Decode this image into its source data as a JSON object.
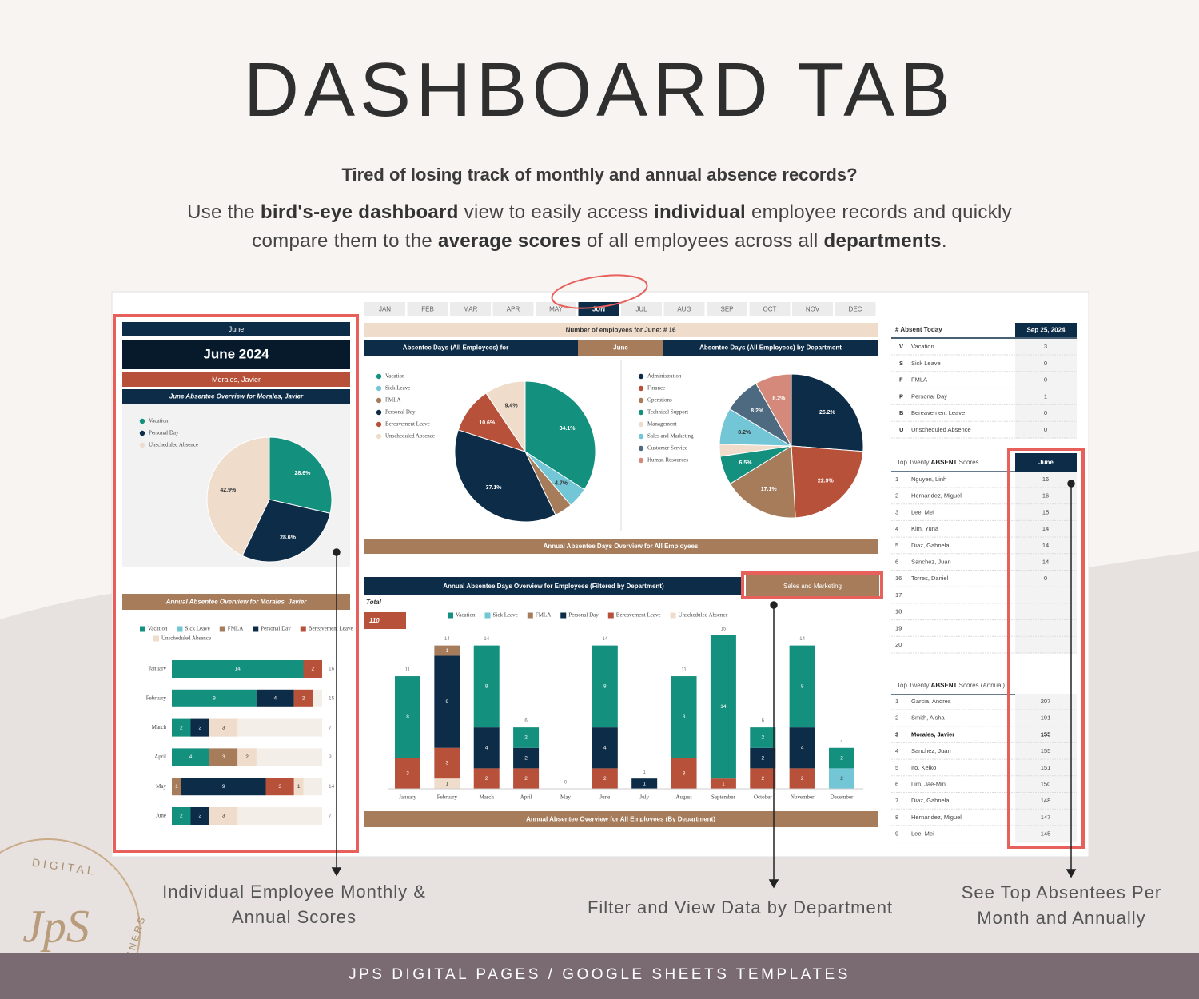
{
  "header": {
    "title": "DASHBOARD TAB",
    "question": "Tired of losing track of monthly and annual absence records?",
    "description": [
      {
        "text": "Use the ",
        "bold": false
      },
      {
        "text": "bird's-eye dashboard",
        "bold": true
      },
      {
        "text": " view to easily access ",
        "bold": false
      },
      {
        "text": "individual",
        "bold": true
      },
      {
        "text": " employee records and quickly compare them to the ",
        "bold": false
      },
      {
        "text": "average scores",
        "bold": true
      },
      {
        "text": " of all employees across all ",
        "bold": false
      },
      {
        "text": "departments",
        "bold": true
      },
      {
        "text": ".",
        "bold": false
      }
    ]
  },
  "dashboard": {
    "months": [
      "JAN",
      "FEB",
      "MAR",
      "APR",
      "MAY",
      "JUN",
      "JUL",
      "AUG",
      "SEP",
      "OCT",
      "NOV",
      "DEC"
    ],
    "active_month_index": 5,
    "employee": {
      "month_label": "June",
      "period": "June 2024",
      "name": "Morales, Javier",
      "overview_title": "June Absentee Overview for Morales, Javier",
      "pie": {
        "type": "pie",
        "categories": [
          "Vacation",
          "Personal Day",
          "Unscheduled Absence"
        ],
        "colors": [
          "#14907f",
          "#0c2c47",
          "#efdccb"
        ],
        "values": [
          28.6,
          28.6,
          42.9
        ],
        "value_labels": [
          "28.6%",
          "28.6%",
          "42.9%"
        ]
      }
    },
    "employee_annual": {
      "type": "bar",
      "orientation": "horizontal",
      "title": "Annual Absentee Overview for Morales, Javier",
      "categories": [
        "January",
        "February",
        "March",
        "April",
        "May",
        "June"
      ],
      "series": [
        {
          "name": "Vacation",
          "color": "#14907f",
          "values": [
            14,
            9,
            2,
            4,
            0,
            2
          ]
        },
        {
          "name": "Sick Leave",
          "color": "#72c6d6",
          "values": [
            0,
            0,
            0,
            0,
            0,
            0
          ]
        },
        {
          "name": "FMLA",
          "color": "#a67c5b",
          "values": [
            0,
            0,
            0,
            3,
            1,
            0
          ]
        },
        {
          "name": "Personal Day",
          "color": "#0c2c47",
          "values": [
            0,
            4,
            2,
            0,
            9,
            2
          ]
        },
        {
          "name": "Bereavement Leave",
          "color": "#b8513a",
          "values": [
            2,
            2,
            0,
            0,
            3,
            0
          ]
        },
        {
          "name": "Unscheduled Absence",
          "color": "#efdccb",
          "values": [
            0,
            0,
            3,
            2,
            1,
            3
          ]
        }
      ],
      "totals": [
        16,
        15,
        7,
        9,
        14,
        7
      ],
      "xlim": [
        0,
        16
      ]
    },
    "summary": "Number of employees for June: # 16",
    "pies_header": {
      "left": "Absentee Days (All Employees) for",
      "month": "June",
      "right": "Absentee Days (All Employees) by Department"
    },
    "type_pie": {
      "type": "pie",
      "categories": [
        "Vacation",
        "Sick Leave",
        "FMLA",
        "Personal Day",
        "Bereavement Leave",
        "Unscheduled Absence"
      ],
      "colors": [
        "#14907f",
        "#72c6d6",
        "#a67c5b",
        "#0c2c47",
        "#b8513a",
        "#efdccb"
      ],
      "values": [
        34.1,
        4.7,
        4.1,
        37.1,
        10.6,
        9.4
      ],
      "value_labels": [
        "34.1%",
        "4.7%",
        null,
        "37.1%",
        "10.6%",
        "9.4%"
      ]
    },
    "dept_pie": {
      "type": "pie",
      "categories": [
        "Administration",
        "Finance",
        "Operations",
        "Technical Support",
        "Management",
        "Sales and Marketing",
        "Customer Service",
        "Human Resources"
      ],
      "colors": [
        "#0c2c47",
        "#b8513a",
        "#a67c5b",
        "#14907f",
        "#efdccb",
        "#72c6d6",
        "#4e6a80",
        "#d4897a"
      ],
      "values": [
        26.2,
        22.9,
        17.1,
        6.5,
        2.7,
        8.2,
        8.2,
        8.2
      ],
      "value_labels": [
        "26.2%",
        "22.9%",
        "17.1%",
        "6.5%",
        null,
        "8.2%",
        "8.2%",
        "8.2%"
      ]
    },
    "annual_all_title": "Annual Absentee Days Overview for All Employees",
    "filtered": {
      "type": "bar",
      "title": "Annual Absentee Days Overview for Employees (Filtered by Department)",
      "filter": "Sales and Marketing",
      "total_label": "Total",
      "total": 110,
      "categories": [
        "January",
        "February",
        "March",
        "April",
        "May",
        "June",
        "July",
        "August",
        "September",
        "October",
        "November",
        "December"
      ],
      "series": [
        {
          "name": "Vacation",
          "color": "#14907f",
          "values": [
            8,
            0,
            8,
            2,
            0,
            8,
            0,
            8,
            14,
            2,
            8,
            2
          ]
        },
        {
          "name": "Sick Leave",
          "color": "#72c6d6",
          "values": [
            0,
            0,
            0,
            0,
            0,
            0,
            0,
            0,
            0,
            0,
            0,
            2
          ]
        },
        {
          "name": "FMLA",
          "color": "#a67c5b",
          "values": [
            0,
            1,
            0,
            0,
            0,
            0,
            0,
            0,
            0,
            0,
            0,
            0
          ]
        },
        {
          "name": "Personal Day",
          "color": "#0c2c47",
          "values": [
            0,
            9,
            4,
            2,
            0,
            4,
            1,
            0,
            0,
            2,
            4,
            0
          ]
        },
        {
          "name": "Bereavement Leave",
          "color": "#b8513a",
          "values": [
            3,
            3,
            2,
            2,
            0,
            2,
            0,
            3,
            1,
            2,
            2,
            0
          ]
        },
        {
          "name": "Unscheduled Absence",
          "color": "#efdccb",
          "values": [
            0,
            1,
            0,
            0,
            0,
            0,
            0,
            0,
            0,
            0,
            0,
            0
          ]
        }
      ],
      "totals": [
        11,
        14,
        14,
        6,
        0,
        14,
        1,
        11,
        15,
        6,
        14,
        4
      ],
      "ylim": [
        0,
        16
      ]
    },
    "by_department_title": "Annual Absentee Overview for All Employees (By Department)",
    "absent_today": {
      "header": [
        "# Absent Today",
        "Sep 25, 2024"
      ],
      "rows": [
        [
          "V",
          "Vacation",
          3
        ],
        [
          "S",
          "Sick Leave",
          0
        ],
        [
          "F",
          "FMLA",
          0
        ],
        [
          "P",
          "Personal Day",
          1
        ],
        [
          "B",
          "Bereavement Leave",
          0
        ],
        [
          "U",
          "Unscheduled Absence",
          0
        ]
      ]
    },
    "top_month": {
      "title": [
        "Top Twenty ",
        "ABSENT",
        " Scores"
      ],
      "column": "June",
      "rows": [
        [
          1,
          "Nguyen, Linh",
          16
        ],
        [
          2,
          "Hernandez, Miguel",
          16
        ],
        [
          3,
          "Lee, Mei",
          15
        ],
        [
          4,
          "Kim, Yuna",
          14
        ],
        [
          5,
          "Diaz, Gabriela",
          14
        ],
        [
          6,
          "Sanchez, Juan",
          14
        ],
        [
          16,
          "Torres, Daniel",
          0
        ],
        [
          17
        ],
        [
          18
        ],
        [
          19
        ],
        [
          20
        ]
      ]
    },
    "top_annual": {
      "title": [
        "Top Twenty ",
        "ABSENT",
        " Scores (Annual)"
      ],
      "highlight_row_index": 2,
      "rows": [
        [
          1,
          "Garcia, Andres",
          207
        ],
        [
          2,
          "Smith, Aisha",
          191
        ],
        [
          3,
          "Morales, Javier",
          155
        ],
        [
          4,
          "Sanchez, Juan",
          155
        ],
        [
          5,
          "Ito, Keiko",
          151
        ],
        [
          6,
          "Lim, Jae-Min",
          150
        ],
        [
          7,
          "Diaz, Gabriela",
          148
        ],
        [
          8,
          "Hernandez, Miguel",
          147
        ],
        [
          9,
          "Lee, Mei",
          145
        ]
      ]
    }
  },
  "callouts": [
    "Individual Employee Monthly & Annual Scores",
    "Filter and View Data by Department",
    "See Top Absentees Per Month and Annually"
  ],
  "logo": {
    "top": "DIGITAL",
    "monogram": "JpS",
    "bottom": "PLANNERS"
  },
  "footer": "JPS DIGITAL PAGES / GOOGLE SHEETS TEMPLATES"
}
